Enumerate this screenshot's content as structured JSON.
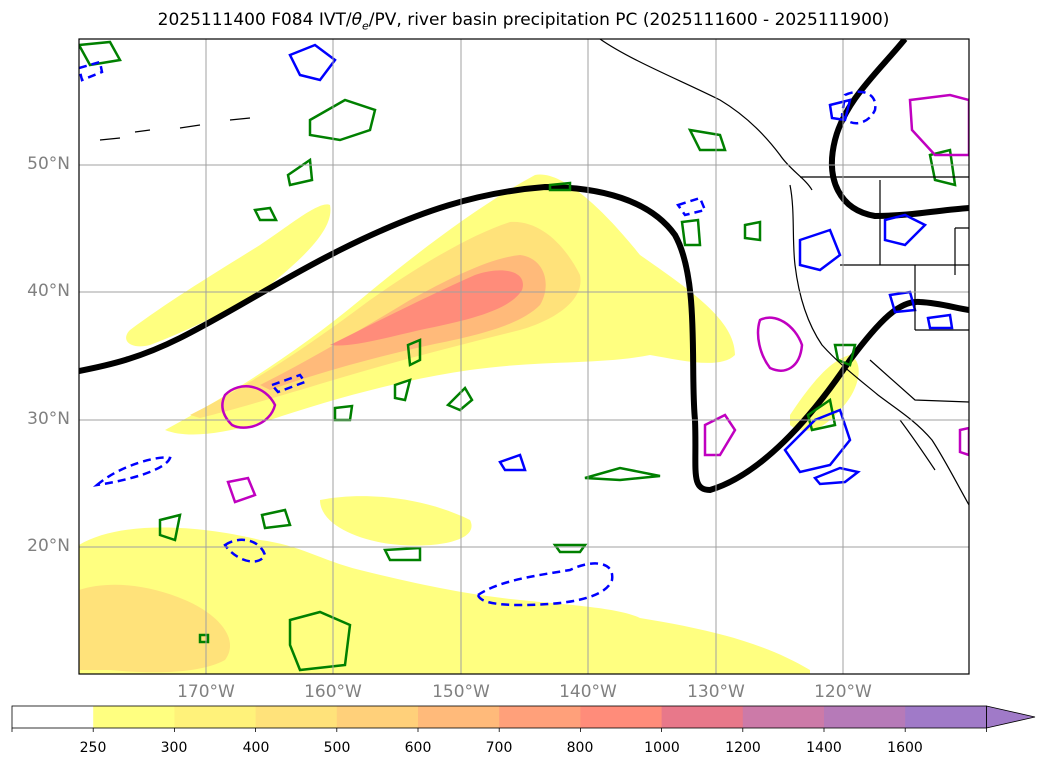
{
  "title": {
    "run": "2025111400",
    "forecast": "F084",
    "fields_prefix": "IVT/",
    "theta": "θ",
    "theta_sub": "e",
    "fields_suffix": "/PV, river basin precipitation PC",
    "period": "(2025111600 - 2025111900)"
  },
  "map": {
    "lat_labels": [
      "50°N",
      "40°N",
      "30°N",
      "20°N"
    ],
    "lon_labels": [
      "170°W",
      "160°W",
      "150°W",
      "140°W",
      "130°W",
      "120°W"
    ],
    "contour_colors": {
      "pv_line": "#000000",
      "theta_e_positive": "#008000",
      "theta_e_negative": "#0000ff",
      "precip_pc": "#c000c0"
    }
  },
  "colorbar": {
    "labels": [
      "250",
      "300",
      "400",
      "500",
      "600",
      "700",
      "800",
      "1000",
      "1200",
      "1400",
      "1600"
    ],
    "colors": [
      "#ffffff",
      "#ffff80",
      "#fff27a",
      "#ffe27a",
      "#ffd07a",
      "#ffba7a",
      "#ffa07a",
      "#ff8c7a",
      "#e8788a",
      "#cc7aa8",
      "#b67ab8",
      "#a07ac8"
    ]
  }
}
